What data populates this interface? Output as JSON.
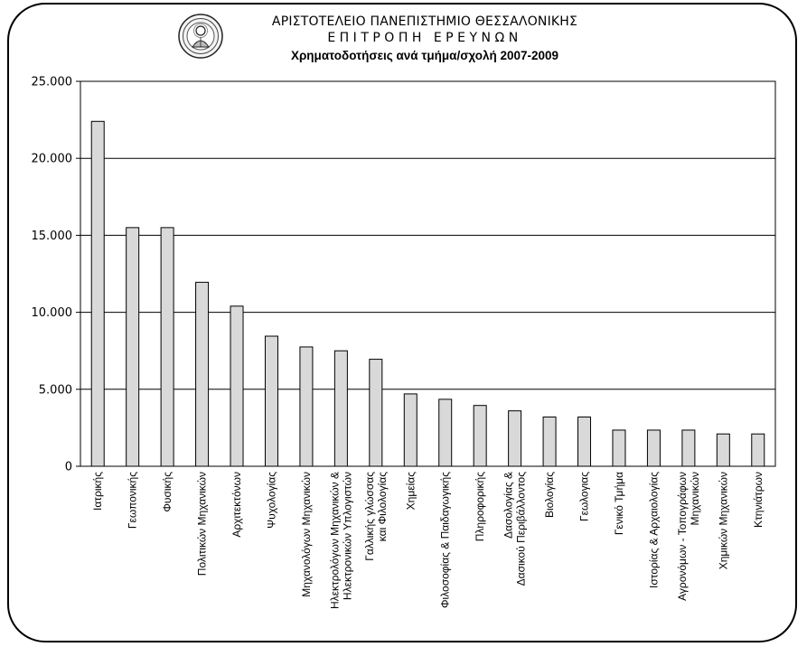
{
  "header": {
    "university": "ΑΡΙΣΤΟΤΕΛΕΙΟ ΠΑΝΕΠΙΣΤΗΜΙΟ ΘΕΣΣΑΛΟΝΙΚΗΣ",
    "committee": "ΕΠΙΤΡΟΠΗ ΕΡΕΥΝΩΝ",
    "seal_icon": "university-seal-icon"
  },
  "chart_data": {
    "type": "bar",
    "title": "Χρηματοδοτήσεις ανά τμήμα/σχολή 2007-2009",
    "xlabel": "",
    "ylabel": "",
    "ylim": [
      0,
      25000
    ],
    "yticks": [
      0,
      5000,
      10000,
      15000,
      20000,
      25000
    ],
    "ytick_labels": [
      "0",
      "5.000",
      "10.000",
      "15.000",
      "20.000",
      "25.000"
    ],
    "grid": true,
    "legend": "none",
    "bar_color": "#d9d9d9",
    "categories": [
      [
        "Ιατρικής"
      ],
      [
        "Γεωπονικής"
      ],
      [
        "Φυσικής"
      ],
      [
        "Πολιτικών Μηχανικών"
      ],
      [
        "Αρχιτεκτόνων"
      ],
      [
        "Ψυχολογίας"
      ],
      [
        "Μηχανολόγων Μηχανικών"
      ],
      [
        "Ηλεκτρολόγων Μηχανικών &",
        "Ηλεκτρονικών Υπλογιστών"
      ],
      [
        "Γαλλικής γλώσσας",
        "και Φιλολογίας"
      ],
      [
        "Χημείας"
      ],
      [
        "Φιλοσοφίας & Παιδαγωγικής"
      ],
      [
        "Πληροφορικής"
      ],
      [
        "Δασολογίας &",
        "Δασικού Περιβάλλοντος"
      ],
      [
        "Βιολογίας"
      ],
      [
        "Γεωλογιας"
      ],
      [
        "Γενικό Τμήμα"
      ],
      [
        "Ιστορίας & Αρχαιολογίας"
      ],
      [
        "Αγρονόμων - Τοπογράφων",
        "Μηχανικών"
      ],
      [
        "Χημικών Μηχανικών"
      ],
      [
        "Κτηνιάτρων"
      ]
    ],
    "values": [
      22400,
      15500,
      15500,
      11950,
      10400,
      8450,
      7750,
      7500,
      6950,
      4700,
      4350,
      3950,
      3600,
      3200,
      3200,
      2350,
      2350,
      2350,
      2100,
      2100
    ]
  }
}
